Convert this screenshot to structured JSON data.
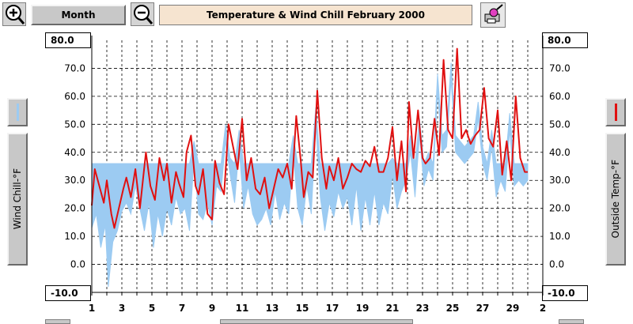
{
  "toolbar": {
    "zoom_in_icon": "zoom-in-magnifier-icon",
    "period_label": "Month",
    "zoom_out_icon": "zoom-out-magnifier-icon",
    "title": "Temperature & Wind Chill  February 2000",
    "print_icon": "printer-paint-icon"
  },
  "left_panel": {
    "axis_label": "Wind Chill-°F",
    "top_value": "80.0",
    "bottom_value": "-10.0",
    "swatch_color": "#9ccbf2"
  },
  "right_panel": {
    "axis_label": "Outside Temp-°F",
    "top_value": "80.0",
    "bottom_value": "-10.0",
    "swatch_color": "#e01010"
  },
  "chart_data": {
    "type": "line",
    "grid": true,
    "y_ticks": [
      "70.0",
      "60.0",
      "50.0",
      "40.0",
      "30.0",
      "20.0",
      "10.0",
      "0.0"
    ],
    "x_ticks": [
      "1",
      "3",
      "5",
      "7",
      "9",
      "11",
      "13",
      "15",
      "17",
      "19",
      "21",
      "23",
      "25",
      "27",
      "29",
      "2"
    ],
    "ylim": [
      -10,
      80
    ],
    "xlim": [
      1,
      31
    ],
    "series": [
      {
        "name": "Outside Temp-°F",
        "color": "#e01010",
        "style": "line",
        "x": [
          1.0,
          1.2,
          1.5,
          1.8,
          2.0,
          2.3,
          2.5,
          2.8,
          3.1,
          3.3,
          3.6,
          3.9,
          4.2,
          4.4,
          4.6,
          4.9,
          5.2,
          5.5,
          5.8,
          6.0,
          6.3,
          6.6,
          6.8,
          7.1,
          7.3,
          7.6,
          7.9,
          8.1,
          8.4,
          8.7,
          9.0,
          9.2,
          9.5,
          9.8,
          10.1,
          10.4,
          10.7,
          11.0,
          11.3,
          11.6,
          11.9,
          12.2,
          12.5,
          12.8,
          13.1,
          13.4,
          13.7,
          14.0,
          14.3,
          14.6,
          14.9,
          15.1,
          15.4,
          15.7,
          16.0,
          16.3,
          16.6,
          16.8,
          17.1,
          17.4,
          17.7,
          18.0,
          18.3,
          18.6,
          18.9,
          19.2,
          19.5,
          19.8,
          20.1,
          20.4,
          20.7,
          21.0,
          21.3,
          21.6,
          21.9,
          22.1,
          22.4,
          22.7,
          23.0,
          23.2,
          23.5,
          23.8,
          24.1,
          24.4,
          24.7,
          25.0,
          25.3,
          25.6,
          25.9,
          26.2,
          26.5,
          26.8,
          27.1,
          27.4,
          27.7,
          28.0,
          28.3,
          28.6,
          28.9,
          29.2,
          29.5,
          29.8,
          30.0
        ],
        "y": [
          21,
          34,
          28,
          22,
          30,
          18,
          13,
          20,
          27,
          31,
          24,
          34,
          20,
          30,
          40,
          28,
          23,
          38,
          30,
          36,
          22,
          33,
          29,
          24,
          40,
          46,
          28,
          25,
          34,
          18,
          16,
          37,
          29,
          25,
          50,
          42,
          34,
          52,
          30,
          38,
          27,
          25,
          31,
          20,
          27,
          34,
          31,
          36,
          27,
          53,
          37,
          24,
          33,
          31,
          62,
          38,
          27,
          35,
          30,
          38,
          27,
          31,
          36,
          34,
          33,
          37,
          35,
          42,
          33,
          33,
          38,
          49,
          30,
          44,
          26,
          58,
          38,
          55,
          38,
          36,
          38,
          52,
          39,
          73,
          48,
          45,
          77,
          45,
          48,
          43,
          46,
          48,
          63,
          45,
          42,
          55,
          32,
          44,
          30,
          60,
          38,
          33,
          33
        ]
      },
      {
        "name": "Wind Chill-°F",
        "color": "#9ccbf2",
        "style": "filled-area",
        "x": [
          1.0,
          1.3,
          1.6,
          1.9,
          2.1,
          2.4,
          2.7,
          3.0,
          3.3,
          3.6,
          3.9,
          4.2,
          4.5,
          4.8,
          5.1,
          5.4,
          5.7,
          6.0,
          6.3,
          6.6,
          6.9,
          7.2,
          7.5,
          7.8,
          8.1,
          8.4,
          8.7,
          9.0,
          9.3,
          9.6,
          9.9,
          10.2,
          10.5,
          10.8,
          11.1,
          11.4,
          11.7,
          12.0,
          12.3,
          12.6,
          12.9,
          13.2,
          13.5,
          13.8,
          14.1,
          14.4,
          14.7,
          15.0,
          15.3,
          15.6,
          15.9,
          16.2,
          16.5,
          16.8,
          17.1,
          17.4,
          17.7,
          18.0,
          18.3,
          18.6,
          18.9,
          19.2,
          19.5,
          19.8,
          20.1,
          20.4,
          20.7,
          21.0,
          21.3,
          21.6,
          21.9,
          22.2,
          22.5,
          22.8,
          23.1,
          23.4,
          23.7,
          24.0,
          24.3,
          24.6,
          24.9,
          25.2,
          25.5,
          25.8,
          26.1,
          26.4,
          26.7,
          27.0,
          27.3,
          27.6,
          27.9,
          28.2,
          28.5,
          28.8,
          29.1,
          29.4,
          29.7,
          30.0
        ],
        "y": [
          13,
          18,
          6,
          14,
          -8,
          8,
          12,
          19,
          22,
          18,
          28,
          20,
          12,
          22,
          6,
          18,
          10,
          20,
          14,
          24,
          18,
          20,
          12,
          38,
          18,
          16,
          22,
          14,
          28,
          26,
          44,
          32,
          22,
          42,
          20,
          28,
          18,
          14,
          16,
          20,
          14,
          26,
          16,
          22,
          18,
          40,
          20,
          14,
          28,
          18,
          50,
          24,
          12,
          22,
          17,
          26,
          20,
          24,
          14,
          28,
          12,
          24,
          14,
          26,
          14,
          22,
          18,
          32,
          20,
          26,
          30,
          40,
          24,
          46,
          28,
          34,
          30,
          62,
          40,
          42,
          66,
          40,
          38,
          36,
          38,
          40,
          52,
          36,
          30,
          42,
          24,
          30,
          26,
          48,
          28,
          30,
          28,
          30
        ]
      }
    ]
  }
}
